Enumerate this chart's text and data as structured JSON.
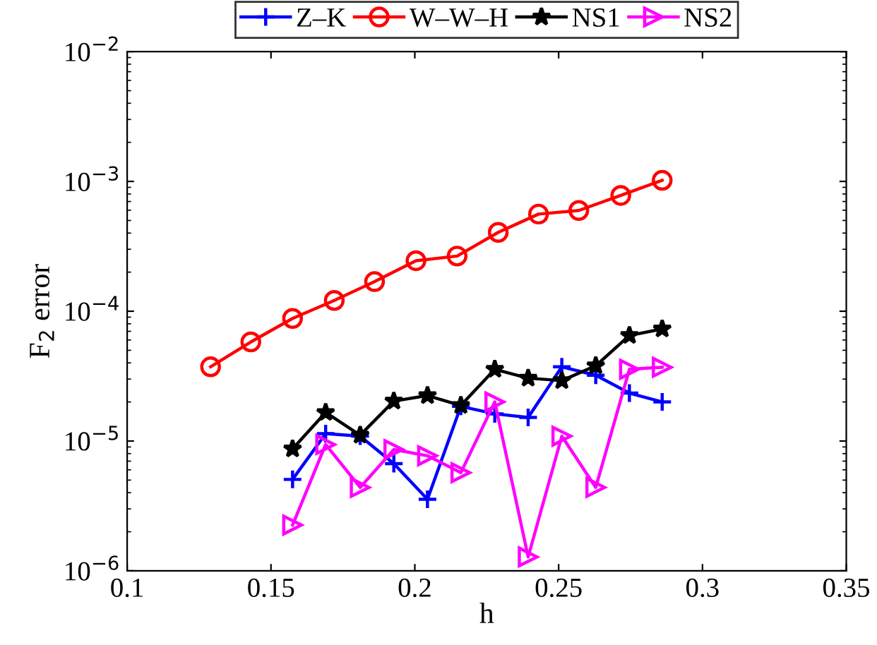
{
  "chart_data": {
    "type": "line",
    "xlabel": "h",
    "ylabel": "F$_{2}$ error",
    "log": "y",
    "legend": "top",
    "grid": false,
    "xlim": [
      0.1,
      0.35
    ],
    "xticks": [
      0.1,
      0.15,
      0.2,
      0.25,
      0.3,
      0.35
    ],
    "ylim": [
      1e-06,
      0.01
    ],
    "yticks": [
      {
        "value": 1e-06,
        "label": "10$^{−6}$"
      },
      {
        "value": 1e-05,
        "label": "10$^{−5}$"
      },
      {
        "value": 0.0001,
        "label": "10$^{−4}$"
      },
      {
        "value": 0.001,
        "label": "10$^{−3}$"
      },
      {
        "value": 0.01,
        "label": "10$^{−2}$"
      }
    ],
    "series": [
      {
        "name": "Z–K",
        "color": "#0000ff",
        "marker": "cross",
        "x": [
          0.1575,
          0.169,
          0.181,
          0.1927,
          0.2044,
          0.216,
          0.2278,
          0.2394,
          0.2511,
          0.2629,
          0.2746,
          0.286
        ],
        "values": [
          5.06e-06,
          1.14e-05,
          1.09e-05,
          6.7e-06,
          3.56e-06,
          1.85e-05,
          1.62e-05,
          1.52e-05,
          3.73e-05,
          3.21e-05,
          2.34e-05,
          2e-05
        ]
      },
      {
        "name": "W–W–H",
        "color": "#ff0000",
        "marker": "circle",
        "x": [
          0.129,
          0.143,
          0.1575,
          0.172,
          0.186,
          0.2004,
          0.2147,
          0.229,
          0.243,
          0.257,
          0.2716,
          0.286
        ],
        "values": [
          3.73e-05,
          5.8e-05,
          8.8e-05,
          0.000121,
          0.000169,
          0.000245,
          0.000266,
          0.000405,
          0.00056,
          0.000597,
          0.00078,
          0.00102
        ]
      },
      {
        "name": "NS1",
        "color": "#000000",
        "marker": "star",
        "x": [
          0.1575,
          0.169,
          0.181,
          0.1927,
          0.2044,
          0.216,
          0.2278,
          0.2394,
          0.2511,
          0.2629,
          0.2746,
          0.286
        ],
        "values": [
          8.7e-06,
          1.66e-05,
          1.11e-05,
          2.03e-05,
          2.24e-05,
          1.88e-05,
          3.57e-05,
          3.05e-05,
          2.92e-05,
          3.8e-05,
          6.5e-05,
          7.3e-05
        ]
      },
      {
        "name": "NS2",
        "color": "#ff00ff",
        "marker": "triangle",
        "x": [
          0.1575,
          0.169,
          0.181,
          0.1927,
          0.2044,
          0.216,
          0.2278,
          0.2394,
          0.2511,
          0.2629,
          0.2746,
          0.286
        ],
        "values": [
          2.25e-06,
          9.4e-06,
          4.39e-06,
          8.6e-06,
          7.7e-06,
          5.7e-06,
          2e-05,
          1.28e-06,
          1.09e-05,
          4.39e-06,
          3.57e-05,
          3.7e-05
        ]
      }
    ]
  }
}
